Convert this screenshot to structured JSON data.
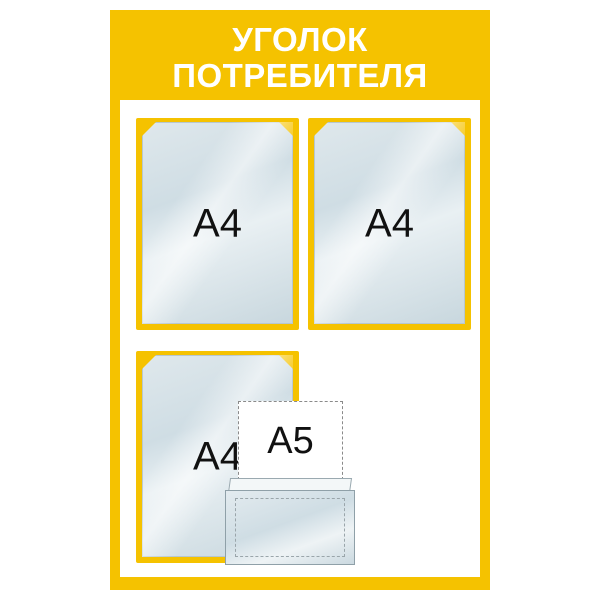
{
  "board": {
    "title_line1": "УГОЛОК",
    "title_line2": "ПОТРЕБИТЕЛЯ",
    "accent_color": "#f5c200"
  },
  "pockets": [
    {
      "label": "A4"
    },
    {
      "label": "A4"
    },
    {
      "label": "A4"
    }
  ],
  "a5_pocket": {
    "label": "A5"
  }
}
